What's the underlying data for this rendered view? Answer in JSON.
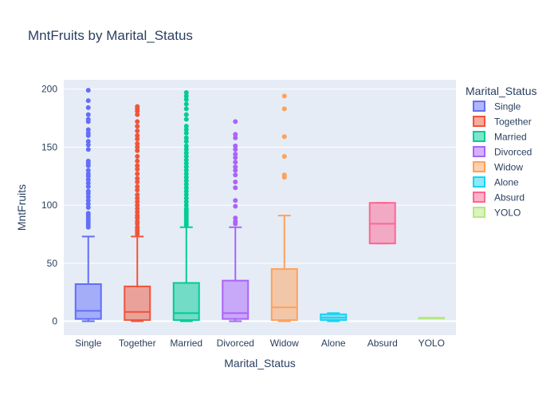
{
  "chart_data": {
    "type": "box",
    "title": "MntFruits by Marital_Status",
    "xlabel": "Marital_Status",
    "ylabel": "MntFruits",
    "ylim": [
      -12,
      208
    ],
    "yticks": [
      0,
      50,
      100,
      150,
      200
    ],
    "grid": true,
    "legend": {
      "title": "Marital_Status",
      "placement": "right"
    },
    "categories": [
      "Single",
      "Together",
      "Married",
      "Divorced",
      "Widow",
      "Alone",
      "Absurd",
      "YOLO"
    ],
    "series": [
      {
        "name": "Single",
        "color": "#636efa",
        "min": 0,
        "q1": 2,
        "median": 9,
        "q3": 32,
        "max": 73,
        "outliers": [
          199,
          190,
          184,
          178,
          174,
          172,
          165,
          162,
          160,
          155,
          152,
          148,
          138,
          136,
          134,
          130,
          127,
          125,
          122,
          119,
          116,
          112,
          110,
          107,
          104,
          101,
          98,
          93,
          91,
          89,
          87,
          85,
          83,
          81
        ]
      },
      {
        "name": "Together",
        "color": "#ef553b",
        "min": 0,
        "q1": 1,
        "median": 8,
        "q3": 30,
        "max": 73,
        "outliers": [
          185,
          183,
          181,
          178,
          172,
          168,
          164,
          160,
          157,
          153,
          150,
          147,
          142,
          138,
          134,
          131,
          127,
          123,
          120,
          116,
          113,
          109,
          106,
          103,
          100,
          97,
          94,
          91,
          89,
          86,
          84,
          81,
          79,
          77,
          75
        ]
      },
      {
        "name": "Married",
        "color": "#00cc96",
        "min": 0,
        "q1": 1,
        "median": 7,
        "q3": 33,
        "max": 81,
        "outliers": [
          197,
          194,
          191,
          187,
          183,
          178,
          174,
          168,
          165,
          162,
          158,
          155,
          151,
          148,
          145,
          142,
          139,
          136,
          133,
          130,
          127,
          124,
          121,
          118,
          115,
          112,
          109,
          106,
          103,
          100,
          97,
          95,
          93,
          91,
          89,
          87,
          85,
          83
        ]
      },
      {
        "name": "Divorced",
        "color": "#ab63fa",
        "min": 0,
        "q1": 2,
        "median": 7,
        "q3": 35,
        "max": 81,
        "outliers": [
          172,
          161,
          158,
          151,
          148,
          144,
          141,
          137,
          133,
          130,
          126,
          120,
          115,
          104,
          99,
          89,
          86,
          84
        ]
      },
      {
        "name": "Widow",
        "color": "#ffa15a",
        "min": 0,
        "q1": 1,
        "median": 12,
        "q3": 45,
        "max": 91,
        "outliers": [
          194,
          183,
          159,
          142,
          126,
          124
        ]
      },
      {
        "name": "Alone",
        "color": "#19d3f3",
        "min": 0,
        "q1": 1,
        "median": 3,
        "q3": 6,
        "max": 7,
        "outliers": []
      },
      {
        "name": "Absurd",
        "color": "#ff6692",
        "min": 67,
        "q1": 67,
        "median": 84,
        "q3": 102,
        "max": 102,
        "outliers": []
      },
      {
        "name": "YOLO",
        "color": "#b6e880",
        "min": 3,
        "q1": 3,
        "median": 3,
        "q3": 3,
        "max": 3,
        "outliers": []
      }
    ]
  }
}
